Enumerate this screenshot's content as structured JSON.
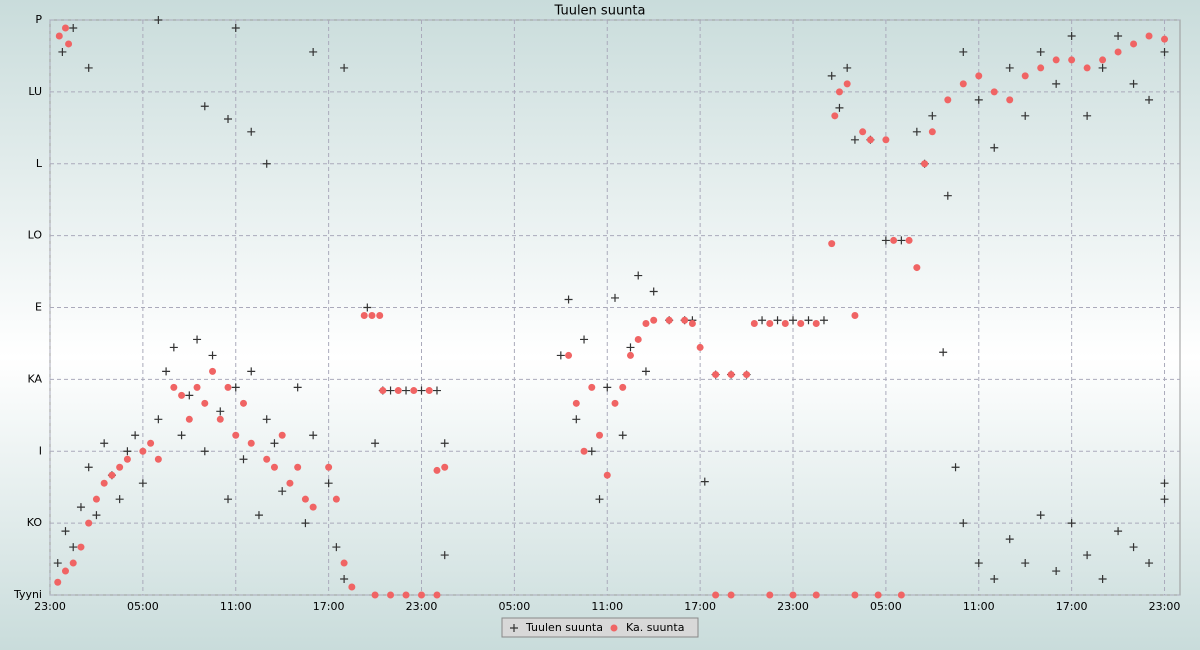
{
  "chart_data": {
    "type": "scatter",
    "title": "Tuulen suunta",
    "xlim": [
      0,
      73
    ],
    "xticks": [
      {
        "value": 0,
        "label": "23:00"
      },
      {
        "value": 6,
        "label": "05:00"
      },
      {
        "value": 12,
        "label": "11:00"
      },
      {
        "value": 18,
        "label": "17:00"
      },
      {
        "value": 24,
        "label": "23:00"
      },
      {
        "value": 30,
        "label": "05:00"
      },
      {
        "value": 36,
        "label": "11:00"
      },
      {
        "value": 42,
        "label": "17:00"
      },
      {
        "value": 48,
        "label": "23:00"
      },
      {
        "value": 54,
        "label": "05:00"
      },
      {
        "value": 60,
        "label": "11:00"
      },
      {
        "value": 66,
        "label": "17:00"
      },
      {
        "value": 72,
        "label": "23:00"
      }
    ],
    "ylim": [
      0,
      360
    ],
    "yticks": [
      {
        "value": 0,
        "label": "Tyyni"
      },
      {
        "value": 45,
        "label": "KO"
      },
      {
        "value": 90,
        "label": "I"
      },
      {
        "value": 135,
        "label": "KA"
      },
      {
        "value": 180,
        "label": "E"
      },
      {
        "value": 225,
        "label": "LO"
      },
      {
        "value": 270,
        "label": "L"
      },
      {
        "value": 315,
        "label": "LU"
      },
      {
        "value": 360,
        "label": "P"
      }
    ],
    "grid": true,
    "legend": "bottom",
    "series": [
      {
        "name": "Tuulen suunta",
        "color": "#333333",
        "marker": "plus",
        "x": [
          0.5,
          1,
          1.5,
          2,
          2.5,
          3,
          3.5,
          4,
          4.5,
          5,
          5.5,
          6,
          7,
          7.5,
          8,
          8.5,
          9,
          9.5,
          10,
          10.5,
          11,
          11.5,
          12,
          12.5,
          13,
          13.5,
          14,
          14.5,
          15,
          16,
          16.5,
          17,
          18,
          18.5,
          19,
          0.8,
          1.5,
          2.5,
          10,
          11.5,
          12,
          13,
          14,
          17,
          19,
          7,
          20.5,
          21,
          21.5,
          22,
          23,
          24,
          25,
          25.5,
          25.5,
          33,
          33.5,
          34,
          34.5,
          35,
          35.5,
          36,
          36.5,
          37,
          37.5,
          38,
          38.5,
          39,
          40,
          41,
          41.5,
          42.3,
          43,
          44,
          45,
          46,
          47,
          48,
          49,
          50,
          50.5,
          51,
          51.5,
          52,
          53,
          54,
          55,
          56,
          56.5,
          57,
          58,
          59,
          60,
          61,
          62,
          63,
          64,
          65,
          66,
          67,
          68,
          69,
          70,
          71,
          72,
          57.7,
          58.5,
          59,
          60,
          61,
          62,
          63,
          64,
          65,
          66,
          67,
          68,
          69,
          70,
          71,
          72,
          72
        ],
        "values": [
          20,
          40,
          30,
          55,
          80,
          50,
          95,
          75,
          60,
          90,
          100,
          70,
          110,
          140,
          155,
          100,
          125,
          160,
          90,
          150,
          115,
          60,
          130,
          85,
          140,
          50,
          110,
          95,
          65,
          130,
          45,
          100,
          70,
          30,
          10,
          340,
          355,
          330,
          306,
          298,
          355,
          290,
          270,
          340,
          330,
          360,
          180,
          95,
          128,
          128,
          128,
          128,
          128,
          95,
          25,
          150,
          185,
          110,
          160,
          90,
          60,
          130,
          186,
          100,
          155,
          200,
          140,
          190,
          172,
          172,
          172,
          71,
          138,
          138,
          138,
          172,
          172,
          172,
          172,
          172,
          325,
          305,
          330,
          285,
          285,
          222,
          222,
          290,
          270,
          300,
          250,
          340,
          310,
          280,
          330,
          300,
          340,
          320,
          350,
          300,
          330,
          350,
          320,
          310,
          340,
          152,
          80,
          45,
          20,
          10,
          35,
          20,
          50,
          15,
          45,
          25,
          10,
          40,
          30,
          20,
          60,
          70
        ]
      },
      {
        "name": "Ka. suunta",
        "color": "#f06464",
        "marker": "circle",
        "x": [
          0.5,
          1,
          1.5,
          2,
          2.5,
          3,
          3.5,
          4,
          4.5,
          5,
          6,
          6.5,
          7,
          8,
          8.5,
          9,
          9.5,
          10,
          10.5,
          11,
          11.5,
          12,
          12.5,
          13,
          14,
          14.5,
          15,
          15.5,
          16,
          16.5,
          17,
          18,
          18.5,
          19,
          19.5,
          0.6,
          1,
          1.2,
          20.3,
          20.8,
          21.3,
          21.5,
          22.5,
          23.5,
          24.5,
          25,
          25.5,
          21,
          22,
          23,
          24,
          25,
          33.5,
          34,
          34.5,
          35,
          35.5,
          36,
          36.5,
          37,
          37.5,
          38,
          38.5,
          39,
          40,
          41,
          41.5,
          42,
          43,
          44,
          45,
          45.5,
          46.5,
          47.5,
          48.5,
          49.5,
          50.5,
          50.7,
          51,
          51.5,
          52,
          52.5,
          53,
          54,
          54.5,
          55.5,
          56,
          56.5,
          57,
          58,
          59,
          60,
          61,
          62,
          63,
          64,
          65,
          66,
          67,
          68,
          69,
          70,
          71,
          72,
          43,
          44,
          46.5,
          48,
          49.5,
          52,
          53.5,
          55
        ],
        "values": [
          8,
          15,
          20,
          30,
          45,
          60,
          70,
          75,
          80,
          85,
          90,
          95,
          85,
          130,
          125,
          110,
          130,
          120,
          140,
          110,
          130,
          100,
          120,
          95,
          85,
          80,
          100,
          70,
          80,
          60,
          55,
          80,
          60,
          20,
          5,
          350,
          355,
          345,
          175,
          175,
          175,
          128,
          128,
          128,
          128,
          78,
          80,
          0,
          0,
          0,
          0,
          0,
          150,
          120,
          90,
          130,
          100,
          75,
          120,
          130,
          150,
          160,
          170,
          172,
          172,
          172,
          170,
          155,
          138,
          138,
          138,
          170,
          170,
          170,
          170,
          170,
          220,
          300,
          315,
          320,
          175,
          290,
          285,
          285,
          222,
          222,
          205,
          270,
          290,
          310,
          320,
          325,
          315,
          310,
          325,
          330,
          335,
          335,
          330,
          335,
          340,
          345,
          350,
          348,
          0,
          0,
          0,
          0,
          0,
          0,
          0,
          0
        ]
      }
    ]
  }
}
